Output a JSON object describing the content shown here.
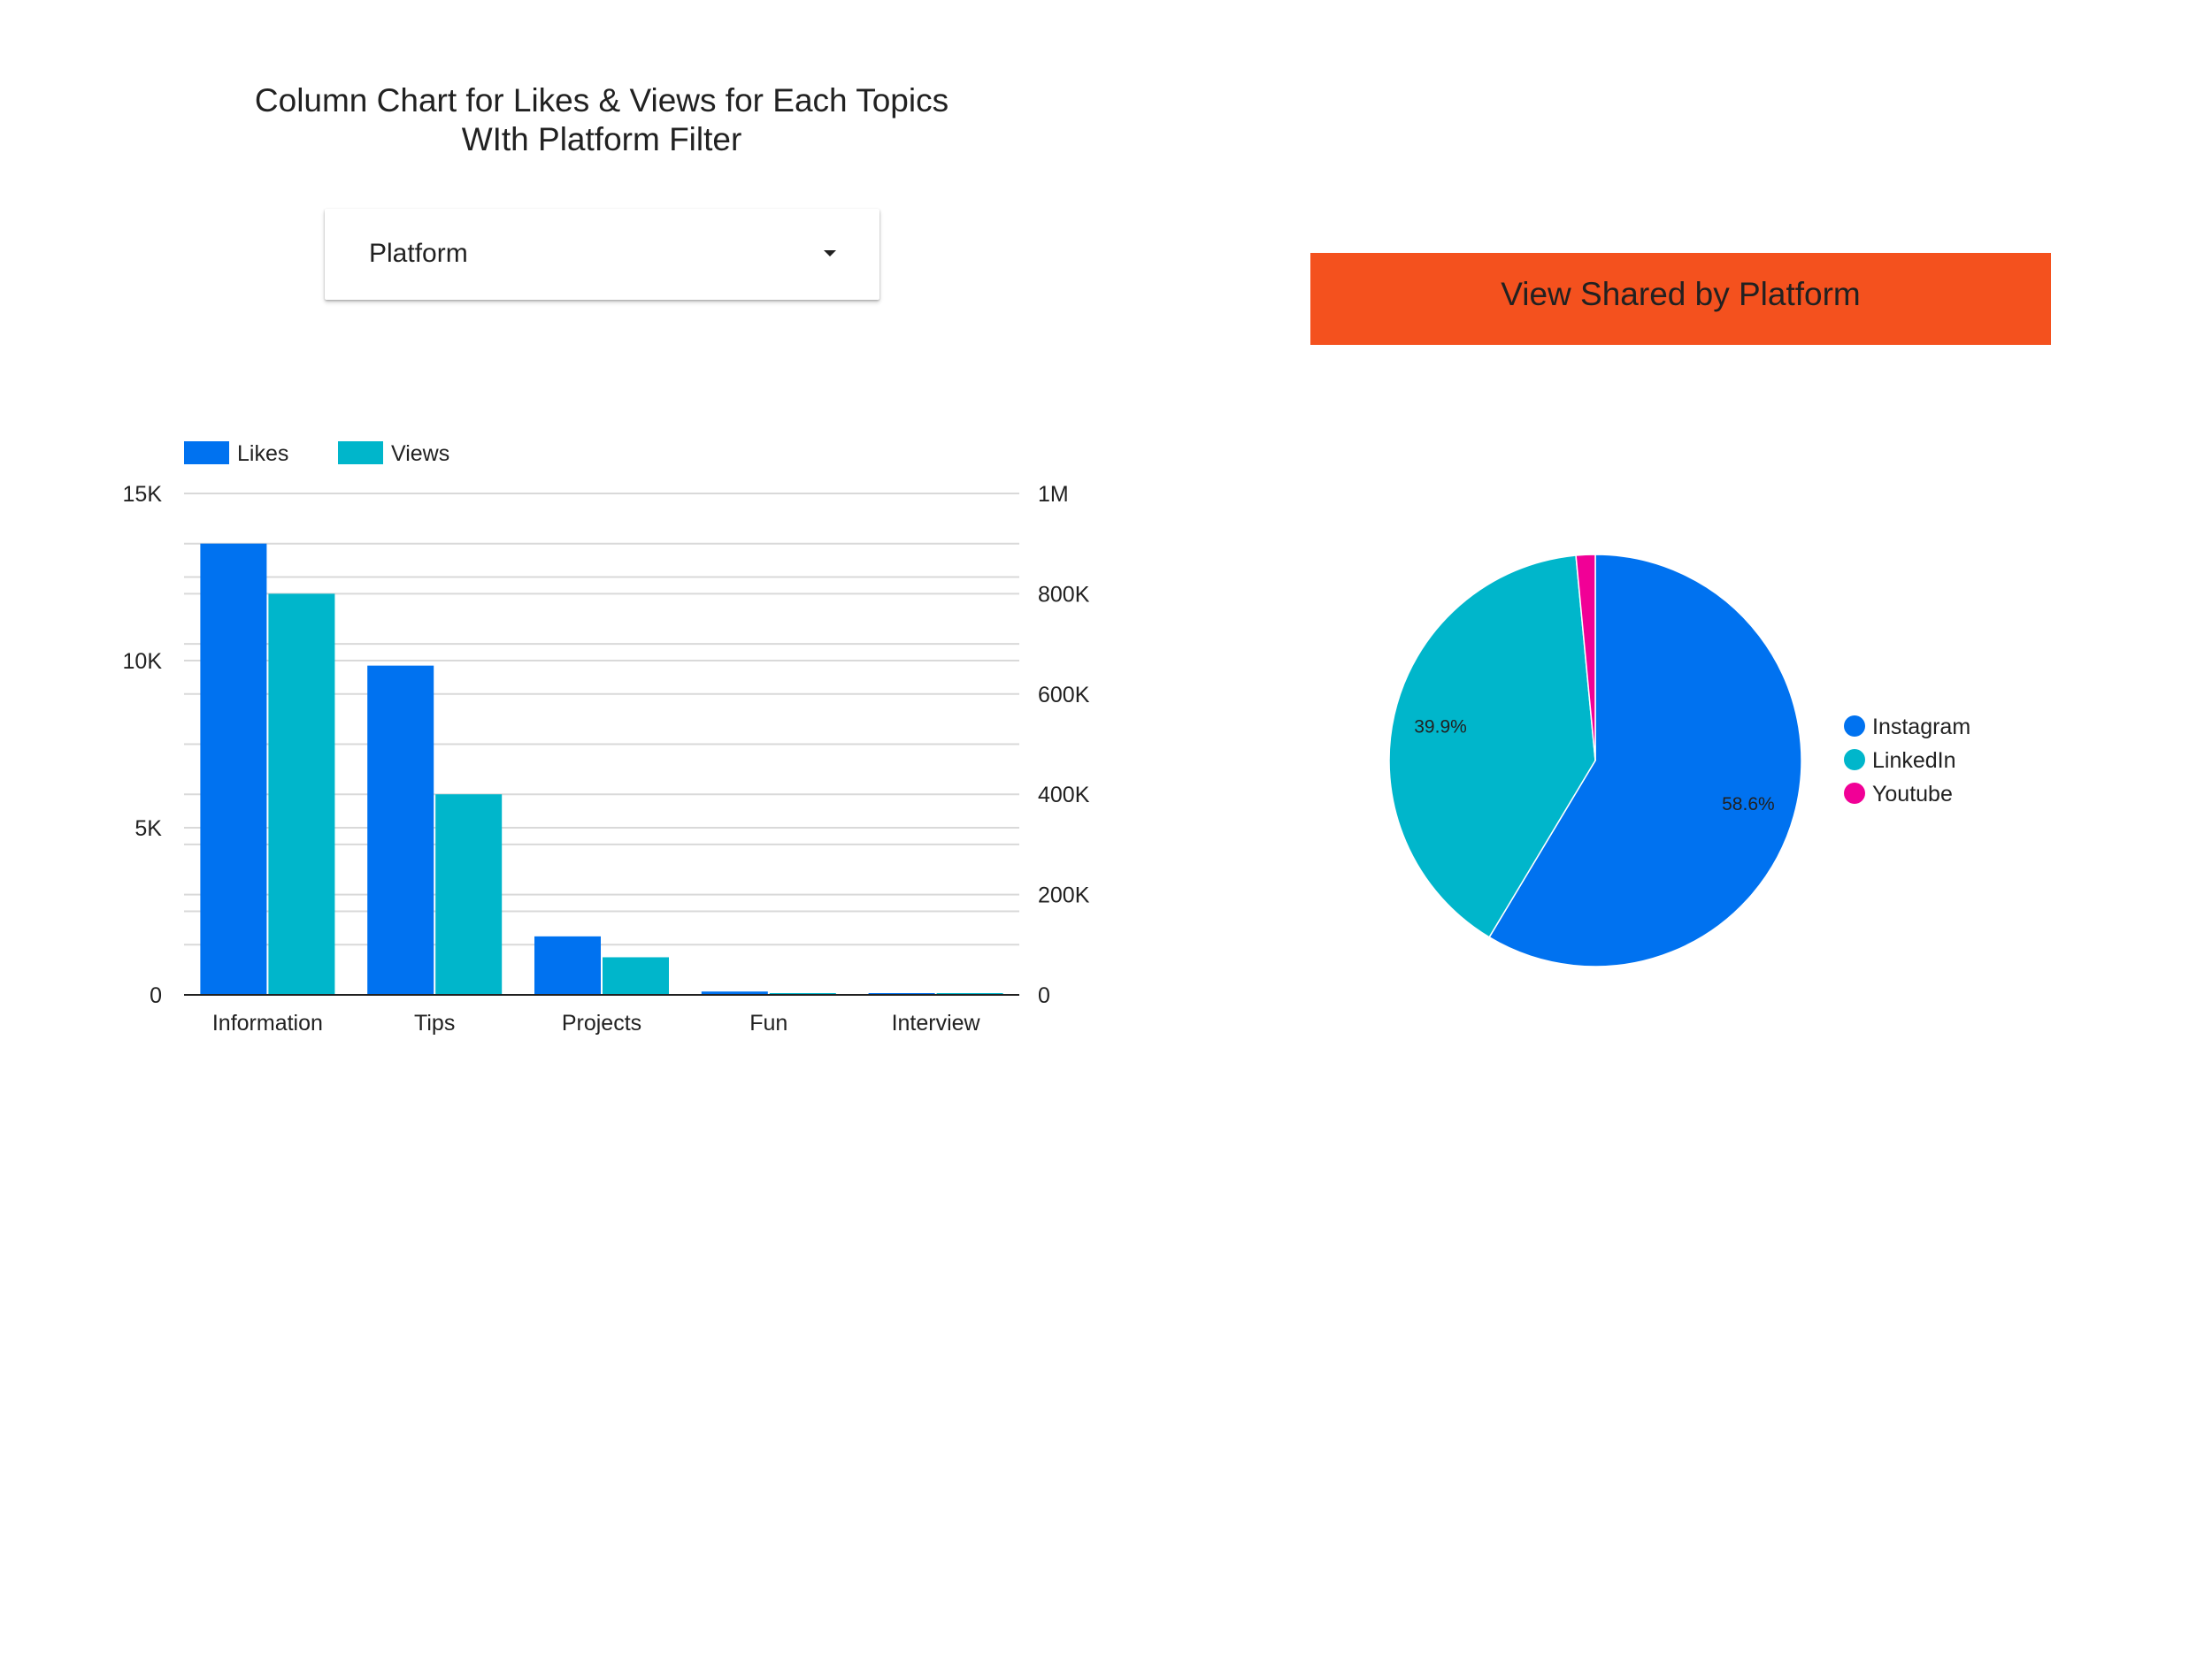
{
  "left_panel": {
    "title_line1": "Column Chart for Likes & Views for Each Topics",
    "title_line2": "WIth Platform Filter",
    "filter": {
      "label": "Platform",
      "icon": "caret-down-icon"
    }
  },
  "right_panel": {
    "banner_title": "View Shared by Platform",
    "banner_color": "#f4511e"
  },
  "chart_data": [
    {
      "type": "bar",
      "categories": [
        "Information",
        "Tips",
        "Projects",
        "Fun",
        "Interview"
      ],
      "series": [
        {
          "name": "Likes",
          "axis": "left",
          "color": "#0072f0",
          "values": [
            13500,
            9850,
            1750,
            100,
            50
          ]
        },
        {
          "name": "Views",
          "axis": "right",
          "color": "#00b6cb",
          "values": [
            800000,
            400000,
            75000,
            3000,
            1000
          ]
        }
      ],
      "left_axis": {
        "min": 0,
        "max": 15000,
        "ticks": [
          0,
          5000,
          10000,
          15000
        ],
        "tick_labels": [
          "0",
          "5K",
          "10K",
          "15K"
        ]
      },
      "right_axis": {
        "min": 0,
        "max": 1000000,
        "ticks": [
          0,
          200000,
          400000,
          600000,
          800000,
          1000000
        ],
        "tick_labels": [
          "0",
          "200K",
          "400K",
          "600K",
          "800K",
          "1M"
        ]
      },
      "grid": true,
      "legend_position": "top-left"
    },
    {
      "type": "pie",
      "slices": [
        {
          "label": "Instagram",
          "value": 58.6,
          "color": "#0072f0",
          "display": "58.6%"
        },
        {
          "label": "LinkedIn",
          "value": 39.9,
          "color": "#00b6cb",
          "display": "39.9%"
        },
        {
          "label": "Youtube",
          "value": 1.5,
          "color": "#f10096",
          "display": ""
        }
      ],
      "legend_position": "right"
    }
  ]
}
